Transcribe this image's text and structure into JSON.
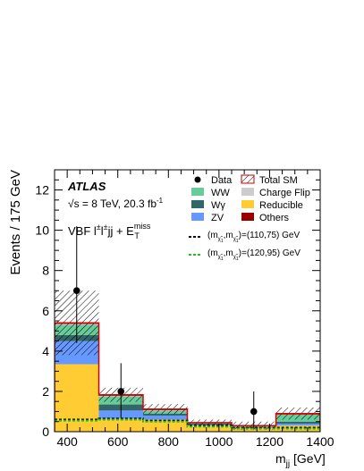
{
  "chart_data": {
    "type": "bar",
    "stacked": true,
    "xlabel_main": "m",
    "xlabel_sub": "jj",
    "xlabel_unit": " [GeV]",
    "ylabel": "Events / 175 GeV",
    "xlim": [
      350,
      1400
    ],
    "ylim": [
      0,
      13
    ],
    "x_ticks": [
      400,
      600,
      800,
      1000,
      1200,
      1400
    ],
    "y_ticks": [
      0,
      2,
      4,
      6,
      8,
      10,
      12
    ],
    "bin_edges": [
      350,
      525,
      700,
      875,
      1050,
      1225,
      1400
    ],
    "series": [
      {
        "name": "Reducible",
        "color": "#ffcc33",
        "values": [
          3.35,
          0.65,
          0.6,
          0.3,
          0.2,
          0.3
        ]
      },
      {
        "name": "ZV",
        "color": "#6699ff",
        "values": [
          1.15,
          0.4,
          0.2,
          0.05,
          0.05,
          0.1
        ]
      },
      {
        "name": "Wγ",
        "color": "#336666",
        "values": [
          0.3,
          0.3,
          0.1,
          0.05,
          0.0,
          0.1
        ]
      },
      {
        "name": "WW",
        "color": "#66cc99",
        "values": [
          0.5,
          0.4,
          0.15,
          0.05,
          0.05,
          0.35
        ]
      },
      {
        "name": "Charge Flip",
        "color": "#cccccc",
        "values": [
          0.05,
          0.03,
          0.02,
          0.0,
          0.0,
          0.0
        ]
      },
      {
        "name": "Others",
        "color": "#990000",
        "values": [
          0.05,
          0.05,
          0.05,
          0.0,
          0.0,
          0.05
        ]
      }
    ],
    "total_sm": [
      5.4,
      1.83,
      1.12,
      0.45,
      0.3,
      0.9
    ],
    "total_sm_uncertainty": [
      1.6,
      0.35,
      0.25,
      0.15,
      0.2,
      0.3
    ],
    "data": {
      "name": "Data",
      "x": [
        437.5,
        612.5,
        1137.5
      ],
      "y": [
        7,
        2,
        1
      ],
      "err_up": [
        3.2,
        1.4,
        1.0
      ],
      "err_down": [
        2.6,
        1.3,
        0.85
      ]
    },
    "signals": [
      {
        "label_prefix": "(m",
        "label_suffix": ")=(110,75) GeV",
        "color": "#000000",
        "values": [
          0.6,
          0.65,
          0.55,
          0.3,
          0.2,
          0.2
        ]
      },
      {
        "label_prefix": "(m",
        "label_suffix": ")=(120,95) GeV",
        "color": "#22bb22",
        "values": [
          0.55,
          0.6,
          0.5,
          0.25,
          0.15,
          0.15
        ]
      }
    ],
    "legend": [
      {
        "key": "data",
        "label": "Data"
      },
      {
        "key": "totalsm",
        "label": "Total SM"
      },
      {
        "key": "ww",
        "label": "WW",
        "color": "#66cc99"
      },
      {
        "key": "chargeflip",
        "label": "Charge Flip",
        "color": "#cccccc"
      },
      {
        "key": "wgamma",
        "label": "Wγ",
        "color": "#336666"
      },
      {
        "key": "reducible",
        "label": "Reducible",
        "color": "#ffcc33"
      },
      {
        "key": "zv",
        "label": "ZV",
        "color": "#6699ff"
      },
      {
        "key": "others",
        "label": "Others",
        "color": "#990000"
      }
    ],
    "legend_position": "top-right",
    "annotations": {
      "atlas": "ATLAS",
      "energy_sqrt": "√",
      "energy": "s = 8 TeV, 20.3 fb",
      "energy_sup": "-1",
      "region_a": "VBF l",
      "region_sup1": "±",
      "region_b": "l",
      "region_sup2": "±",
      "region_c": "jj + E",
      "region_sup3": "miss",
      "region_sub3": "T"
    }
  }
}
